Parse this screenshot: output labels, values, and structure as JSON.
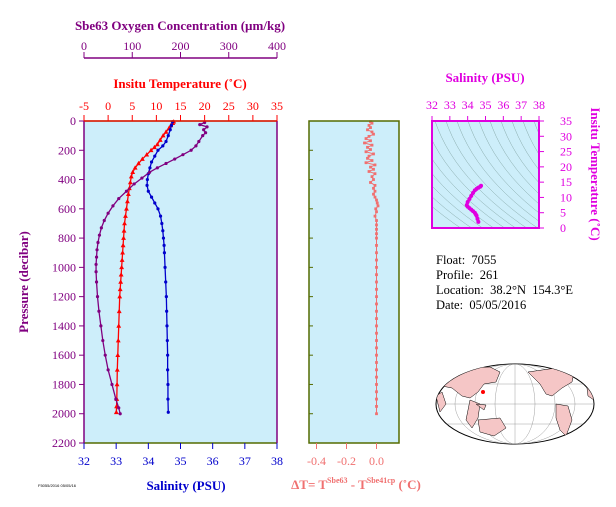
{
  "info": {
    "float": "Float:  7055",
    "profile": "Profile:  261",
    "location": "Location:  38.2°N  154.3°E",
    "date": "Date:  05/05/2016"
  },
  "footer_code": "F5055/2016 05/05/16",
  "colors": {
    "oxygen": "#800080",
    "temperature": "#ff0000",
    "salinity": "#0000cc",
    "delta": "#f07070",
    "ts": "#e000e0",
    "panel_bg": "#cdeefa",
    "frame_green": "#556b00"
  },
  "chart_data": [
    {
      "type": "line",
      "name": "main-profile",
      "ylabel": "Pressure (decibar)",
      "ylim": [
        2200,
        0
      ],
      "yticks": [
        "0",
        "200",
        "400",
        "600",
        "800",
        "1000",
        "1200",
        "1400",
        "1600",
        "1800",
        "2000",
        "2200"
      ],
      "oxygen_axis": {
        "label": "Sbe63 Oxygen Concentration (µm/kg)",
        "range": [
          0,
          400
        ],
        "ticks": [
          "0",
          "100",
          "200",
          "300",
          "400"
        ]
      },
      "temperature_axis": {
        "label": "Insitu Temperature (˚C)",
        "range": [
          -5,
          35
        ],
        "ticks": [
          "-5",
          "0",
          "5",
          "10",
          "15",
          "20",
          "25",
          "30",
          "35"
        ]
      },
      "salinity_axis": {
        "label": "Salinity (PSU)",
        "range": [
          32,
          38
        ],
        "ticks": [
          "32",
          "33",
          "34",
          "35",
          "36",
          "37",
          "38"
        ]
      },
      "series": [
        {
          "name": "Temperature",
          "values": [
            [
              13.6,
              5
            ],
            [
              13.4,
              15
            ],
            [
              13.0,
              30
            ],
            [
              12.6,
              50
            ],
            [
              12.0,
              75
            ],
            [
              11.4,
              100
            ],
            [
              10.8,
              130
            ],
            [
              10.2,
              160
            ],
            [
              9.6,
              180
            ],
            [
              8.9,
              200
            ],
            [
              8.0,
              230
            ],
            [
              7.1,
              260
            ],
            [
              6.3,
              290
            ],
            [
              5.6,
              320
            ],
            [
              5.1,
              350
            ],
            [
              4.8,
              380
            ],
            [
              4.6,
              420
            ],
            [
              4.4,
              460
            ],
            [
              4.2,
              500
            ],
            [
              4.0,
              550
            ],
            [
              3.8,
              600
            ],
            [
              3.6,
              650
            ],
            [
              3.4,
              700
            ],
            [
              3.3,
              750
            ],
            [
              3.2,
              800
            ],
            [
              3.1,
              850
            ],
            [
              3.0,
              900
            ],
            [
              2.9,
              950
            ],
            [
              2.8,
              1000
            ],
            [
              2.7,
              1050
            ],
            [
              2.6,
              1100
            ],
            [
              2.5,
              1150
            ],
            [
              2.4,
              1200
            ],
            [
              2.3,
              1300
            ],
            [
              2.2,
              1400
            ],
            [
              2.1,
              1500
            ],
            [
              2.0,
              1600
            ],
            [
              1.9,
              1700
            ],
            [
              1.85,
              1800
            ],
            [
              1.8,
              1900
            ],
            [
              1.75,
              1950
            ],
            [
              1.7,
              1990
            ]
          ]
        },
        {
          "name": "Salinity",
          "values": [
            [
              34.75,
              5
            ],
            [
              34.72,
              30
            ],
            [
              34.68,
              60
            ],
            [
              34.62,
              100
            ],
            [
              34.55,
              140
            ],
            [
              34.45,
              170
            ],
            [
              34.3,
              200
            ],
            [
              34.2,
              240
            ],
            [
              34.1,
              280
            ],
            [
              34.05,
              320
            ],
            [
              34.0,
              360
            ],
            [
              33.97,
              400
            ],
            [
              33.96,
              440
            ],
            [
              34.0,
              480
            ],
            [
              34.1,
              520
            ],
            [
              34.2,
              560
            ],
            [
              34.3,
              600
            ],
            [
              34.38,
              650
            ],
            [
              34.42,
              700
            ],
            [
              34.45,
              750
            ],
            [
              34.47,
              800
            ],
            [
              34.49,
              850
            ],
            [
              34.5,
              900
            ],
            [
              34.52,
              1000
            ],
            [
              34.54,
              1100
            ],
            [
              34.56,
              1200
            ],
            [
              34.57,
              1300
            ],
            [
              34.58,
              1400
            ],
            [
              34.59,
              1500
            ],
            [
              34.6,
              1600
            ],
            [
              34.6,
              1700
            ],
            [
              34.61,
              1800
            ],
            [
              34.61,
              1900
            ],
            [
              34.62,
              1990
            ]
          ]
        },
        {
          "name": "Oxygen",
          "values": [
            [
              250,
              10
            ],
            [
              240,
              25
            ],
            [
              255,
              40
            ],
            [
              248,
              60
            ],
            [
              252,
              80
            ],
            [
              246,
              100
            ],
            [
              238,
              140
            ],
            [
              232,
              170
            ],
            [
              222,
              200
            ],
            [
              205,
              230
            ],
            [
              188,
              260
            ],
            [
              170,
              290
            ],
            [
              152,
              320
            ],
            [
              136,
              350
            ],
            [
              120,
              390
            ],
            [
              104,
              430
            ],
            [
              88,
              480
            ],
            [
              72,
              530
            ],
            [
              60,
              580
            ],
            [
              50,
              630
            ],
            [
              42,
              680
            ],
            [
              36,
              730
            ],
            [
              32,
              780
            ],
            [
              29,
              830
            ],
            [
              27,
              880
            ],
            [
              26,
              930
            ],
            [
              25,
              980
            ],
            [
              25,
              1030
            ],
            [
              26,
              1100
            ],
            [
              28,
              1200
            ],
            [
              31,
              1300
            ],
            [
              35,
              1400
            ],
            [
              39,
              1500
            ],
            [
              44,
              1600
            ],
            [
              50,
              1700
            ],
            [
              58,
              1800
            ],
            [
              66,
              1900
            ],
            [
              72,
              1960
            ],
            [
              75,
              2000
            ]
          ]
        }
      ]
    },
    {
      "type": "scatter",
      "name": "delta-t",
      "xlabel_main": "ΔT= T",
      "xlabel_sup1": "Sbe63",
      "xlabel_mid": " - T",
      "xlabel_sup2": "Sbe41cp",
      "xlabel_unit": " (˚C)",
      "xlim": [
        -0.45,
        0.15
      ],
      "xticks": [
        "-0.4",
        "-0.2",
        "0.0"
      ],
      "xtick_values": [
        -0.4,
        -0.2,
        0.0
      ],
      "points": [
        [
          -0.04,
          5
        ],
        [
          -0.03,
          15
        ],
        [
          -0.05,
          30
        ],
        [
          -0.04,
          45
        ],
        [
          -0.06,
          60
        ],
        [
          -0.03,
          75
        ],
        [
          -0.02,
          90
        ],
        [
          -0.05,
          105
        ],
        [
          -0.07,
          120
        ],
        [
          -0.04,
          135
        ],
        [
          -0.08,
          150
        ],
        [
          -0.03,
          165
        ],
        [
          -0.06,
          180
        ],
        [
          -0.04,
          195
        ],
        [
          -0.07,
          210
        ],
        [
          -0.02,
          225
        ],
        [
          -0.05,
          240
        ],
        [
          -0.06,
          255
        ],
        [
          -0.03,
          270
        ],
        [
          -0.07,
          285
        ],
        [
          -0.01,
          300
        ],
        [
          -0.04,
          315
        ],
        [
          -0.02,
          330
        ],
        [
          -0.05,
          345
        ],
        [
          -0.01,
          360
        ],
        [
          -0.03,
          380
        ],
        [
          -0.02,
          400
        ],
        [
          -0.04,
          420
        ],
        [
          -0.01,
          440
        ],
        [
          -0.02,
          460
        ],
        [
          -0.01,
          480
        ],
        [
          -0.02,
          500
        ],
        [
          -0.01,
          520
        ],
        [
          0.0,
          540
        ],
        [
          0.005,
          560
        ],
        [
          0.01,
          580
        ],
        [
          -0.005,
          600
        ],
        [
          0.0,
          620
        ],
        [
          -0.01,
          650
        ],
        [
          0.0,
          680
        ],
        [
          0.0,
          710
        ],
        [
          0.0,
          740
        ],
        [
          0.0,
          770
        ],
        [
          0.0,
          800
        ],
        [
          0.0,
          850
        ],
        [
          0.0,
          900
        ],
        [
          0.0,
          950
        ],
        [
          0.0,
          1000
        ],
        [
          0.0,
          1050
        ],
        [
          0.0,
          1100
        ],
        [
          0.0,
          1150
        ],
        [
          0.0,
          1200
        ],
        [
          0.0,
          1250
        ],
        [
          0.0,
          1300
        ],
        [
          0.0,
          1350
        ],
        [
          0.0,
          1400
        ],
        [
          0.0,
          1450
        ],
        [
          0.0,
          1500
        ],
        [
          0.0,
          1550
        ],
        [
          0.0,
          1600
        ],
        [
          0.0,
          1650
        ],
        [
          0.0,
          1700
        ],
        [
          0.0,
          1750
        ],
        [
          0.0,
          1800
        ],
        [
          0.0,
          1850
        ],
        [
          0.0,
          1900
        ],
        [
          0.0,
          1950
        ],
        [
          0.0,
          2000
        ]
      ]
    },
    {
      "type": "scatter",
      "name": "ts-diagram",
      "xlabel": "Salinity (PSU)",
      "ylabel": "Insitu Temperature (˚C)",
      "xlim": [
        32,
        38
      ],
      "ylim": [
        0,
        35
      ],
      "xticks": [
        "32",
        "33",
        "34",
        "35",
        "36",
        "37",
        "38"
      ],
      "yticks": [
        "0",
        "5",
        "10",
        "15",
        "20",
        "25",
        "30",
        "35"
      ],
      "points": [
        [
          34.6,
          2
        ],
        [
          34.55,
          3
        ],
        [
          34.5,
          4
        ],
        [
          34.45,
          4.5
        ],
        [
          34.4,
          5
        ],
        [
          34.3,
          5.5
        ],
        [
          34.2,
          6
        ],
        [
          34.1,
          6.5
        ],
        [
          34.0,
          7
        ],
        [
          33.95,
          7.5
        ],
        [
          34.0,
          8.5
        ],
        [
          34.1,
          9.5
        ],
        [
          34.2,
          10.5
        ],
        [
          34.3,
          11.5
        ],
        [
          34.4,
          12.3
        ],
        [
          34.5,
          12.8
        ],
        [
          34.6,
          13.2
        ],
        [
          34.7,
          13.5
        ],
        [
          34.75,
          13.8
        ]
      ]
    }
  ]
}
